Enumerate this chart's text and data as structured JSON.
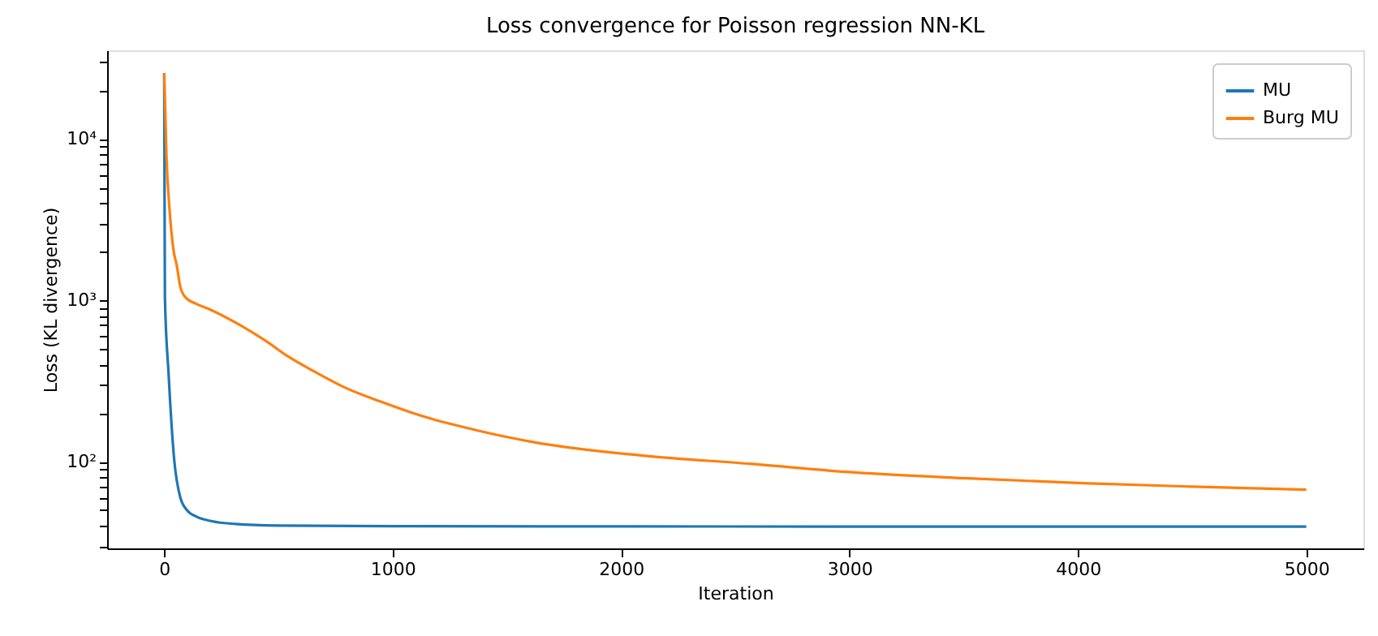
{
  "chart_data": {
    "type": "line",
    "title": "Loss convergence for Poisson regression NN-KL",
    "xlabel": "Iteration",
    "ylabel": "Loss (KL divergence)",
    "log": "y",
    "grid": false,
    "legend": "top right",
    "marker": "none",
    "line_style": "solid",
    "xlim": [
      -250,
      5250
    ],
    "xticks": [
      0,
      1000,
      2000,
      3000,
      4000,
      5000
    ],
    "ylim": [
      29,
      35400
    ],
    "yticks": [
      {
        "value": 30,
        "label": null
      },
      {
        "value": 40,
        "label": null
      },
      {
        "value": 50,
        "label": null
      },
      {
        "value": 60,
        "label": null
      },
      {
        "value": 70,
        "label": null
      },
      {
        "value": 80,
        "label": null
      },
      {
        "value": 90,
        "label": null
      },
      {
        "value": 100,
        "label": "10²"
      },
      {
        "value": 200,
        "label": null
      },
      {
        "value": 300,
        "label": null
      },
      {
        "value": 400,
        "label": null
      },
      {
        "value": 500,
        "label": null
      },
      {
        "value": 600,
        "label": null
      },
      {
        "value": 700,
        "label": null
      },
      {
        "value": 800,
        "label": null
      },
      {
        "value": 900,
        "label": null
      },
      {
        "value": 1000,
        "label": "10³"
      },
      {
        "value": 2000,
        "label": null
      },
      {
        "value": 3000,
        "label": null
      },
      {
        "value": 4000,
        "label": null
      },
      {
        "value": 5000,
        "label": null
      },
      {
        "value": 6000,
        "label": null
      },
      {
        "value": 7000,
        "label": null
      },
      {
        "value": 8000,
        "label": null
      },
      {
        "value": 9000,
        "label": null
      },
      {
        "value": 10000,
        "label": "10⁴"
      },
      {
        "value": 20000,
        "label": null
      },
      {
        "value": 30000,
        "label": null
      }
    ],
    "series": [
      {
        "name": "MU",
        "color": "#1f77b4",
        "x": [
          0,
          1,
          3,
          19,
          43,
          71,
          100,
          143,
          200,
          310,
          500,
          1000,
          2000,
          3000,
          4000,
          5000
        ],
        "values": [
          25500,
          8000,
          1050,
          352,
          105,
          59.6,
          50,
          45.5,
          43,
          41.1,
          40.2,
          39.8,
          39.7,
          39.6,
          39.6,
          39.6
        ]
      },
      {
        "name": "Burg MU",
        "color": "#ff7f0e",
        "x": [
          0,
          10,
          24,
          40,
          55,
          71,
          95,
          140,
          190,
          333,
          440,
          548,
          660,
          786,
          950,
          1143,
          1380,
          1619,
          2095,
          2571,
          3024,
          3500,
          4024,
          4500,
          5000
        ],
        "values": [
          25500,
          7700,
          3550,
          2070,
          1640,
          1200,
          1035,
          950,
          890,
          700,
          565,
          443,
          360,
          290,
          235,
          189,
          155,
          132,
          109,
          96.8,
          85.7,
          79,
          73.5,
          70,
          67
        ]
      }
    ]
  }
}
